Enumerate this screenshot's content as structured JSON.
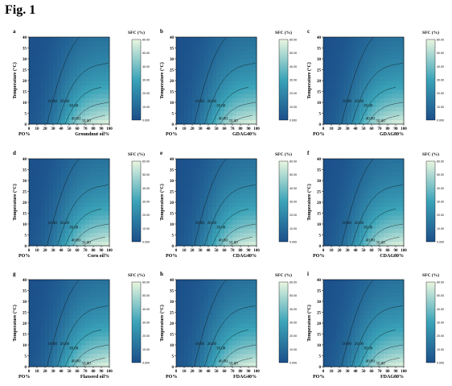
{
  "figure": {
    "title": "Fig. 1"
  },
  "colorbar": {
    "title": "SFC (%)",
    "ticks": [
      "60.00",
      "50.00",
      "40.00",
      "30.00",
      "20.00",
      "10.00",
      "0.000"
    ],
    "range": [
      0,
      60
    ],
    "colors": {
      "low": "#1b4f8a",
      "mid": "#3aa3b8",
      "high": "#e9f6e0"
    }
  },
  "chart_data": [
    {
      "type": "heatmap",
      "panel": "a",
      "title": "",
      "xlabel": "Groundnut oil%",
      "x_left_label": "PO%",
      "ylabel": "Temperature (°C)",
      "x": [
        0,
        10,
        20,
        30,
        40,
        50,
        60,
        70,
        80,
        90,
        100
      ],
      "y": [
        0,
        5,
        10,
        15,
        20,
        25,
        30,
        35,
        40
      ],
      "xlim": [
        0,
        100
      ],
      "ylim": [
        0,
        40
      ],
      "contour_labels": [
        "10.00",
        "20.00",
        "30.00",
        "40.00",
        "50.00",
        "60.00"
      ],
      "sfc_range": [
        0,
        60
      ]
    },
    {
      "type": "heatmap",
      "panel": "b",
      "title": "",
      "xlabel": "GDAG40%",
      "x_left_label": "PO%",
      "ylabel": "Temperature (°C)",
      "x": [
        0,
        10,
        20,
        30,
        40,
        50,
        60,
        70,
        80,
        90,
        100
      ],
      "y": [
        0,
        5,
        10,
        15,
        20,
        25,
        30,
        35,
        40
      ],
      "xlim": [
        0,
        100
      ],
      "ylim": [
        0,
        40
      ],
      "contour_labels": [
        "10.00",
        "20.00",
        "30.00",
        "40.00",
        "50.00",
        "60.00"
      ],
      "sfc_range": [
        0,
        60
      ]
    },
    {
      "type": "heatmap",
      "panel": "c",
      "title": "",
      "xlabel": "GDAG80%",
      "x_left_label": "PO%",
      "ylabel": "Temperature (°C)",
      "x": [
        0,
        10,
        20,
        30,
        40,
        50,
        60,
        70,
        80,
        90,
        100
      ],
      "y": [
        0,
        5,
        10,
        15,
        20,
        25,
        30,
        35,
        40
      ],
      "xlim": [
        0,
        100
      ],
      "ylim": [
        0,
        40
      ],
      "contour_labels": [
        "10.00",
        "20.00",
        "30.00",
        "40.00",
        "50.00"
      ],
      "sfc_range": [
        0,
        60
      ]
    },
    {
      "type": "heatmap",
      "panel": "d",
      "title": "",
      "xlabel": "Corn oil%",
      "x_left_label": "PO%",
      "ylabel": "Temperature (°C)",
      "x": [
        0,
        10,
        20,
        30,
        40,
        50,
        60,
        70,
        80,
        90,
        100
      ],
      "y": [
        0,
        5,
        10,
        15,
        20,
        25,
        30,
        35,
        40
      ],
      "xlim": [
        0,
        100
      ],
      "ylim": [
        0,
        40
      ],
      "contour_labels": [
        "10.00",
        "20.00",
        "30.00",
        "40.00",
        "50.00",
        "60.00"
      ],
      "sfc_range": [
        0,
        60
      ]
    },
    {
      "type": "heatmap",
      "panel": "e",
      "title": "",
      "xlabel": "CDAG40%",
      "x_left_label": "PO%",
      "ylabel": "Temperature (°C)",
      "x": [
        0,
        10,
        20,
        30,
        40,
        50,
        60,
        70,
        80,
        90,
        100
      ],
      "y": [
        0,
        5,
        10,
        15,
        20,
        25,
        30,
        35,
        40
      ],
      "xlim": [
        0,
        100
      ],
      "ylim": [
        0,
        40
      ],
      "contour_labels": [
        "10.00",
        "20.00",
        "30.00",
        "40.00",
        "50.00",
        "60.00"
      ],
      "sfc_range": [
        0,
        60
      ]
    },
    {
      "type": "heatmap",
      "panel": "f",
      "title": "",
      "xlabel": "CDAG80%",
      "x_left_label": "PO%",
      "ylabel": "Temperature (°C)",
      "x": [
        0,
        10,
        20,
        30,
        40,
        50,
        60,
        70,
        80,
        90,
        100
      ],
      "y": [
        0,
        5,
        10,
        15,
        20,
        25,
        30,
        35,
        40
      ],
      "xlim": [
        0,
        100
      ],
      "ylim": [
        0,
        40
      ],
      "contour_labels": [
        "10.00",
        "20.00",
        "30.00",
        "40.00",
        "50.00",
        "60.00"
      ],
      "sfc_range": [
        0,
        60
      ]
    },
    {
      "type": "heatmap",
      "panel": "g",
      "title": "",
      "xlabel": "Flaxseed oil%",
      "x_left_label": "PO%",
      "ylabel": "Temperature (°C)",
      "x": [
        0,
        10,
        20,
        30,
        40,
        50,
        60,
        70,
        80,
        90,
        100
      ],
      "y": [
        0,
        5,
        10,
        15,
        20,
        25,
        30,
        35,
        40
      ],
      "xlim": [
        0,
        100
      ],
      "ylim": [
        0,
        40
      ],
      "contour_labels": [
        "10.00",
        "20.00",
        "30.00",
        "40.00",
        "50.00",
        "60.00"
      ],
      "sfc_range": [
        0,
        60
      ]
    },
    {
      "type": "heatmap",
      "panel": "h",
      "title": "",
      "xlabel": "FDAG40%",
      "x_left_label": "PO%",
      "ylabel": "Temperature (°C)",
      "x": [
        0,
        10,
        20,
        30,
        40,
        50,
        60,
        70,
        80,
        90,
        100
      ],
      "y": [
        0,
        5,
        10,
        15,
        20,
        25,
        30,
        35,
        40
      ],
      "xlim": [
        0,
        100
      ],
      "ylim": [
        0,
        40
      ],
      "contour_labels": [
        "10.00",
        "20.00",
        "30.00",
        "40.00",
        "50.00",
        "60.00"
      ],
      "sfc_range": [
        0,
        60
      ]
    },
    {
      "type": "heatmap",
      "panel": "i",
      "title": "",
      "xlabel": "FDAG80%",
      "x_left_label": "PO%",
      "ylabel": "Temperature (°C)",
      "x": [
        0,
        10,
        20,
        30,
        40,
        50,
        60,
        70,
        80,
        90,
        100
      ],
      "y": [
        0,
        5,
        10,
        15,
        20,
        25,
        30,
        35,
        40
      ],
      "xlim": [
        0,
        100
      ],
      "ylim": [
        0,
        40
      ],
      "contour_labels": [
        "10.00",
        "20.00",
        "30.00",
        "40.00",
        "50.00",
        "60.00"
      ],
      "sfc_range": [
        0,
        60
      ]
    }
  ]
}
